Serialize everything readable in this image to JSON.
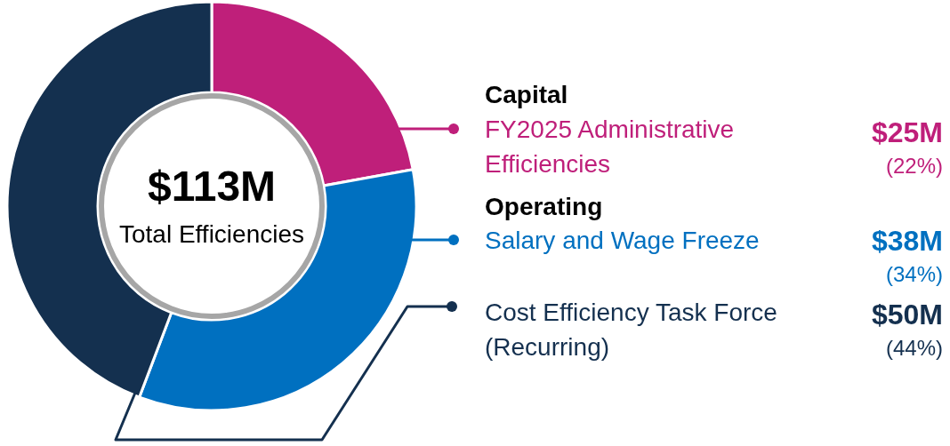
{
  "chart_data": {
    "type": "donut",
    "categories": [
      "FY2025 Administrative Efficiencies",
      "Salary and Wage Freeze",
      "Cost Efficiency Task Force (Recurring)"
    ],
    "values": [
      25,
      38,
      50
    ],
    "colors": [
      "#bf1f7a",
      "#0070c0",
      "#14304f"
    ],
    "value_labels": [
      "$25M",
      "$38M",
      "$50M"
    ],
    "legend": "right",
    "annotations": [
      "$113M",
      "Total Efficiencies",
      "Capital",
      "Operating",
      "(22%)",
      "(34%)",
      "(44%)"
    ]
  }
}
